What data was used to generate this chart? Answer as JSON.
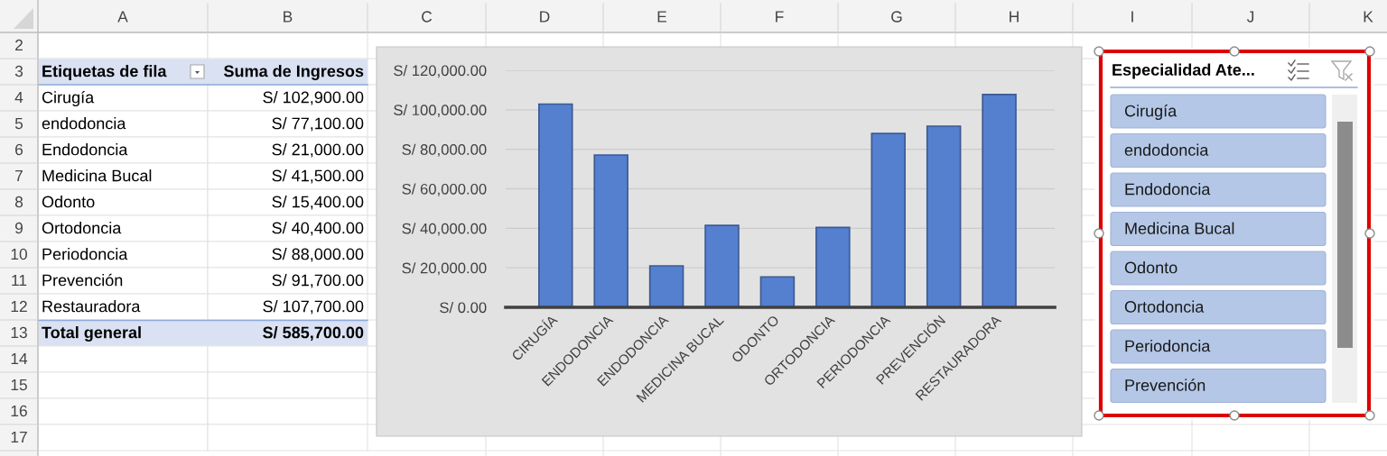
{
  "chart_data": [
    {
      "type": "heatmap",
      "categories": [
        "A",
        "B"
      ],
      "y_categories": [
        "2",
        "3",
        "4",
        "5",
        "6",
        "7",
        "8",
        "9",
        "10",
        "11",
        "12",
        "13",
        "14",
        "15",
        "16",
        "17"
      ],
      "cells": [
        [
          null,
          null
        ],
        [
          null,
          null
        ],
        [
          null,
          null
        ],
        [
          null,
          null
        ],
        [
          null,
          null
        ],
        [
          null,
          null
        ],
        [
          null,
          null
        ],
        [
          null,
          null
        ],
        [
          null,
          null
        ],
        [
          null,
          null
        ],
        [
          null,
          null
        ],
        [
          null,
          null
        ],
        [
          null,
          null
        ],
        [
          null,
          null
        ],
        [
          null,
          null
        ],
        [
          null,
          null
        ]
      ],
      "cell_labels": [
        [
          null,
          null
        ],
        [
          "Etiquetas de fila",
          "Suma de Ingresos"
        ],
        [
          "Cirugía",
          "S/ 102,900.00"
        ],
        [
          "endodoncia",
          "S/ 77,100.00"
        ],
        [
          "Endodoncia",
          "S/ 21,000.00"
        ],
        [
          "Medicina Bucal",
          "S/ 41,500.00"
        ],
        [
          "Odonto",
          "S/ 15,400.00"
        ],
        [
          "Ortodoncia",
          "S/ 40,400.00"
        ],
        [
          "Periodoncia",
          "S/ 88,000.00"
        ],
        [
          "Prevención",
          "S/ 91,700.00"
        ],
        [
          "Restauradora",
          "S/ 107,700.00"
        ],
        [
          "Total general",
          "S/ 585,700.00"
        ],
        [
          null,
          null
        ],
        [
          null,
          null
        ],
        [
          null,
          null
        ],
        [
          null,
          null
        ]
      ]
    },
    {
      "type": "other",
      "categories": [
        "C",
        "D",
        "E",
        "F",
        "G",
        "H",
        "I",
        "J",
        "K"
      ]
    },
    {
      "type": "bar",
      "categories": [
        "CIRUGÍA",
        "ENDODONCIA",
        "ENDODONCIA",
        "MEDICINA BUCAL",
        "ODONTO",
        "ORTODONCIA",
        "PERIODONCIA",
        "PREVENCIÓN",
        "RESTAURADORA"
      ],
      "values": [
        102900,
        77100,
        21000,
        41500,
        15400,
        40400,
        88000,
        91700,
        107700
      ],
      "color": "#5580d0",
      "ylim": [
        0,
        120000
      ],
      "yticks": [
        {
          "value": 0,
          "label": "S/ 0.00"
        },
        {
          "value": 20000,
          "label": "S/ 20,000.00"
        },
        {
          "value": 40000,
          "label": "S/ 40,000.00"
        },
        {
          "value": 60000,
          "label": "S/ 60,000.00"
        },
        {
          "value": 80000,
          "label": "S/ 80,000.00"
        },
        {
          "value": 100000,
          "label": "S/ 100,000.00"
        },
        {
          "value": 120000,
          "label": "S/ 120,000.00"
        }
      ],
      "grid": "y"
    },
    {
      "type": "other",
      "title": "Especialidad Ate...",
      "annotations": [
        "Cirugía",
        "endodoncia",
        "Endodoncia",
        "Medicina Bucal",
        "Odonto",
        "Ortodoncia",
        "Periodoncia",
        "Prevención"
      ]
    }
  ]
}
